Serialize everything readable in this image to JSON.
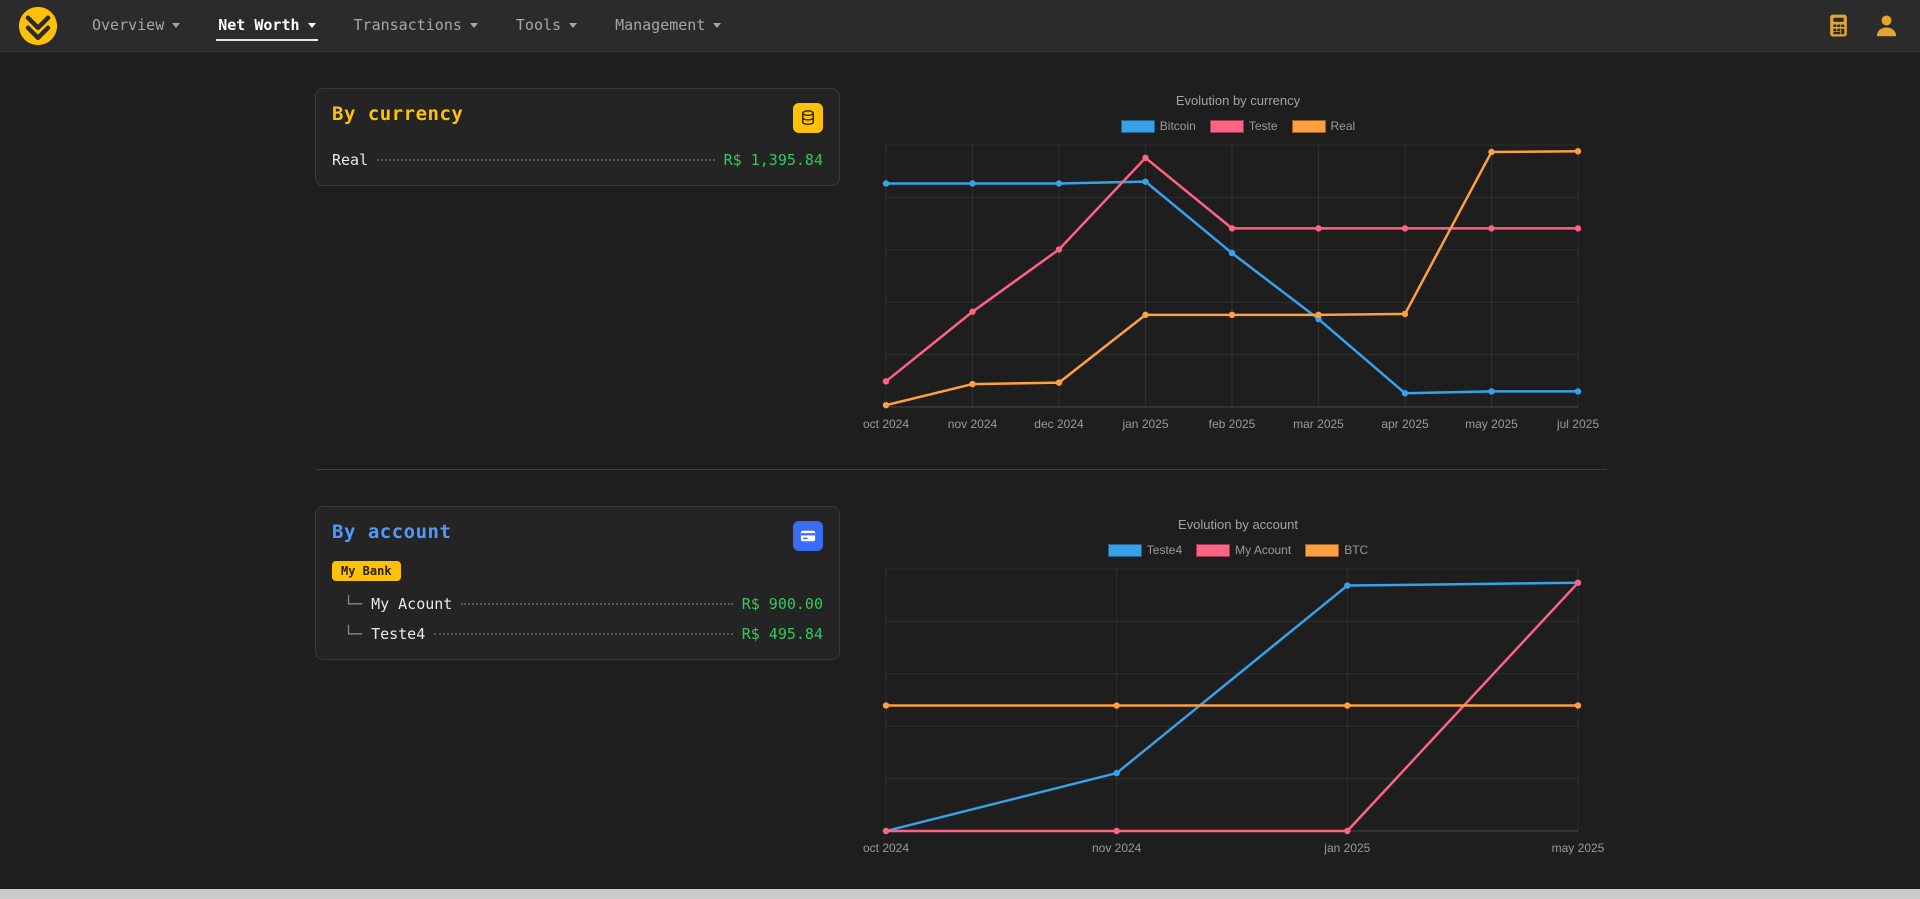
{
  "navbar": {
    "items": [
      {
        "label": "Overview",
        "active": false
      },
      {
        "label": "Net Worth",
        "active": true
      },
      {
        "label": "Transactions",
        "active": false
      },
      {
        "label": "Tools",
        "active": false
      },
      {
        "label": "Management",
        "active": false
      }
    ]
  },
  "icons": {
    "brand": "double-chevron-coin",
    "calculator": "calculator",
    "profile": "user-silhouette",
    "currency_card": "coin-stack",
    "account_card": "credit-card"
  },
  "colors": {
    "accent_yellow": "#ffc107",
    "accent_blue": "#4e9bff",
    "button_blue": "#3b6cf6",
    "value_green": "#32c959",
    "navbar_bg": "#2b2b2b",
    "page_bg": "#1e1e1e",
    "card_bg": "#242424"
  },
  "panels": {
    "by_currency": {
      "title": "By currency",
      "rows": [
        {
          "label": "Real",
          "value": "R$ 1,395.84"
        }
      ]
    },
    "by_account": {
      "title": "By account",
      "badge": "My Bank",
      "rows": [
        {
          "prefix": "└─",
          "label": "My Acount",
          "value": "R$ 900.00"
        },
        {
          "prefix": "└─",
          "label": "Teste4",
          "value": "R$ 495.84"
        }
      ]
    }
  },
  "chart_data": [
    {
      "type": "line",
      "title": "Evolution by currency",
      "categories": [
        "oct 2024",
        "nov 2024",
        "dec 2024",
        "jan 2025",
        "feb 2025",
        "mar 2025",
        "apr 2025",
        "may 2025",
        "jul 2025"
      ],
      "series": [
        {
          "name": "Bitcoin",
          "color": "#36a2eb",
          "values": [
            1220,
            1220,
            1220,
            1230,
            840,
            480,
            75,
            85,
            85
          ]
        },
        {
          "name": "Teste",
          "color": "#ff6384",
          "values": [
            140,
            520,
            860,
            1360,
            975,
            975,
            975,
            975,
            975
          ]
        },
        {
          "name": "Real",
          "color": "#ff9f40",
          "values": [
            10,
            125,
            133,
            503,
            503,
            503,
            508,
            1392,
            1395.84
          ]
        }
      ],
      "ylim": [
        0,
        1430
      ],
      "grid": true,
      "legend_position": "top",
      "y_axis_labels": false
    },
    {
      "type": "line",
      "title": "Evolution by account",
      "categories": [
        "oct 2024",
        "nov 2024",
        "jan 2025",
        "may 2025"
      ],
      "series": [
        {
          "name": "Teste4",
          "color": "#36a2eb",
          "values": [
            0,
            210,
            890,
            900
          ]
        },
        {
          "name": "My Acount",
          "color": "#ff6384",
          "values": [
            0,
            0,
            0,
            900
          ]
        },
        {
          "name": "BTC",
          "color": "#ff9f40",
          "values": [
            455,
            455,
            455,
            455
          ]
        }
      ],
      "ylim": [
        0,
        950
      ],
      "grid": true,
      "legend_position": "top",
      "y_axis_labels": false
    }
  ]
}
